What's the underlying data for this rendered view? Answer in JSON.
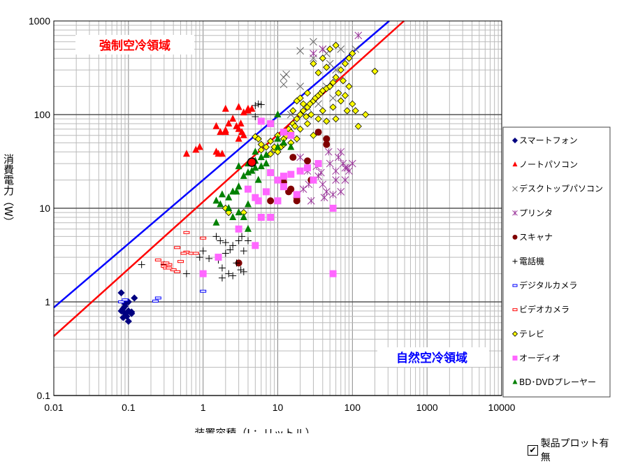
{
  "chart_data": {
    "type": "scatter",
    "xlabel": "装置容積（L：リットル）",
    "ylabel": "消費電力（W）",
    "xscale": "log",
    "yscale": "log",
    "xlim": [
      0.01,
      10000
    ],
    "ylim": [
      0.1,
      1000
    ],
    "xticks": [
      "0.01",
      "0.1",
      "1",
      "10",
      "100",
      "1000",
      "10000"
    ],
    "yticks": [
      "0.1",
      "1",
      "10",
      "100",
      "1000"
    ],
    "grid": true,
    "legend_placement": "right",
    "annotations": [
      {
        "text": "強制空冷領域",
        "color": "#FF0000"
      },
      {
        "text": "自然空冷領域",
        "color": "#0000FF"
      }
    ],
    "lines": [
      {
        "color": "#0000FF",
        "points": [
          [
            0.01,
            0.87
          ],
          [
            311,
            1000
          ]
        ]
      },
      {
        "color": "#FF0000",
        "points": [
          [
            0.01,
            0.43
          ],
          [
            490,
            1000
          ]
        ]
      }
    ],
    "highlight_point": {
      "x": 4.5,
      "y": 31,
      "color": "#FF0000"
    },
    "series": [
      {
        "name": "スマートフォン",
        "marker": "diamond",
        "color": "#000080",
        "points": [
          [
            0.08,
            1.25
          ],
          [
            0.09,
            0.95
          ],
          [
            0.1,
            1.0
          ],
          [
            0.11,
            0.78
          ],
          [
            0.12,
            1.1
          ],
          [
            0.085,
            0.85
          ],
          [
            0.09,
            0.75
          ],
          [
            0.095,
            0.7
          ],
          [
            0.1,
            0.62
          ],
          [
            0.08,
            0.8
          ],
          [
            0.09,
            0.9
          ],
          [
            0.11,
            0.75
          ],
          [
            0.1,
            0.8
          ],
          [
            0.085,
            0.68
          ]
        ]
      },
      {
        "name": "ノートパソコン",
        "marker": "triangle",
        "color": "#FF0000",
        "points": [
          [
            2,
            115
          ],
          [
            3,
            120
          ],
          [
            3.5,
            105
          ],
          [
            4,
            115
          ],
          [
            4.5,
            115
          ],
          [
            1.5,
            75
          ],
          [
            1.7,
            65
          ],
          [
            2.5,
            90
          ],
          [
            3,
            70
          ],
          [
            3.3,
            65
          ],
          [
            2.8,
            75
          ],
          [
            2,
            65
          ],
          [
            2.2,
            80
          ],
          [
            3.5,
            60
          ],
          [
            3,
            55
          ],
          [
            0.8,
            42
          ],
          [
            0.6,
            38
          ],
          [
            0.9,
            45
          ],
          [
            1.6,
            38
          ],
          [
            1.8,
            38
          ],
          [
            1.5,
            40
          ],
          [
            4,
            110
          ],
          [
            3.2,
            80
          ],
          [
            2,
            68
          ]
        ]
      },
      {
        "name": "デスクトップパソコン",
        "marker": "x",
        "color": "#666666",
        "points": [
          [
            30,
            600
          ],
          [
            12,
            250
          ],
          [
            13,
            270
          ],
          [
            12,
            210
          ],
          [
            20,
            480
          ],
          [
            40,
            500
          ],
          [
            30,
            400
          ],
          [
            50,
            350
          ],
          [
            60,
            300
          ],
          [
            45,
            200
          ],
          [
            35,
            130
          ],
          [
            25,
            120
          ],
          [
            55,
            150
          ],
          [
            70,
            500
          ],
          [
            110,
            500
          ],
          [
            20,
            200
          ],
          [
            15,
            100
          ],
          [
            45,
            450
          ]
        ]
      },
      {
        "name": "プリンタ",
        "marker": "asterisk",
        "color": "#993399",
        "points": [
          [
            120,
            700
          ],
          [
            30,
            450
          ],
          [
            40,
            500
          ],
          [
            20,
            35
          ],
          [
            25,
            25
          ],
          [
            30,
            20
          ],
          [
            35,
            22
          ],
          [
            40,
            18
          ],
          [
            50,
            30
          ],
          [
            60,
            25
          ],
          [
            70,
            40
          ],
          [
            80,
            20
          ],
          [
            90,
            25
          ],
          [
            18,
            14
          ],
          [
            22,
            16
          ],
          [
            28,
            12
          ],
          [
            45,
            15
          ],
          [
            55,
            14
          ],
          [
            65,
            35
          ],
          [
            75,
            30
          ],
          [
            85,
            27
          ],
          [
            48,
            40
          ],
          [
            33,
            28
          ],
          [
            38,
            24
          ],
          [
            26,
            18
          ],
          [
            42,
            13
          ],
          [
            60,
            20
          ],
          [
            80,
            27
          ],
          [
            100,
            30
          ],
          [
            70,
            15
          ]
        ]
      },
      {
        "name": "スキャナ",
        "marker": "circle",
        "color": "#800000",
        "points": [
          [
            8,
            12
          ],
          [
            12,
            19
          ],
          [
            14,
            15
          ],
          [
            15,
            16
          ],
          [
            18,
            12
          ],
          [
            25,
            32
          ],
          [
            35,
            65
          ],
          [
            45,
            55
          ],
          [
            45,
            48
          ],
          [
            16,
            35
          ],
          [
            18,
            13
          ],
          [
            28,
            20
          ],
          [
            3,
            2.6
          ]
        ]
      },
      {
        "name": "電話機",
        "marker": "plus",
        "color": "#000000",
        "points": [
          [
            5,
            125
          ],
          [
            5.5,
            130
          ],
          [
            6,
            128
          ],
          [
            5,
            95
          ],
          [
            1,
            3.5
          ],
          [
            0.3,
            2.5
          ],
          [
            0.6,
            2
          ],
          [
            0.9,
            3
          ],
          [
            1.5,
            5
          ],
          [
            1.7,
            4.5
          ],
          [
            2,
            4.3
          ],
          [
            2.5,
            4
          ],
          [
            3,
            4.5
          ],
          [
            3.5,
            3.5
          ],
          [
            2,
            3.3
          ],
          [
            2.3,
            3.6
          ],
          [
            2.8,
            2.6
          ],
          [
            3.2,
            2.2
          ],
          [
            1.8,
            2.3
          ],
          [
            2.2,
            2
          ],
          [
            2.5,
            1.9
          ],
          [
            1.8,
            1.8
          ],
          [
            3.5,
            2.1
          ],
          [
            4,
            4.5
          ],
          [
            3.3,
            5
          ],
          [
            1.2,
            2.9
          ],
          [
            0.15,
            2.5
          ],
          [
            1.6,
            2.8
          ]
        ]
      },
      {
        "name": "デジタルカメラ",
        "marker": "dash",
        "color": "#0000FF",
        "points": [
          [
            0.08,
            1.0
          ],
          [
            0.09,
            1.05
          ],
          [
            0.25,
            1.1
          ],
          [
            0.23,
            1.02
          ],
          [
            1,
            1.3
          ]
        ]
      },
      {
        "name": "ビデオカメラ",
        "marker": "dash",
        "color": "#FF0000",
        "points": [
          [
            0.25,
            2.8
          ],
          [
            0.3,
            2.6
          ],
          [
            0.3,
            2.4
          ],
          [
            0.32,
            2.3
          ],
          [
            0.4,
            2.2
          ],
          [
            0.45,
            2.1
          ],
          [
            0.5,
            2.7
          ],
          [
            0.6,
            3.4
          ],
          [
            0.7,
            3.3
          ],
          [
            0.45,
            3.8
          ],
          [
            0.8,
            3.3
          ],
          [
            0.35,
            2.3
          ],
          [
            0.55,
            3.3
          ],
          [
            1.0,
            4.8
          ],
          [
            0.6,
            5.5
          ],
          [
            0.35,
            2.5
          ],
          [
            0.32,
            2.6
          ]
        ]
      },
      {
        "name": "テレビ",
        "marker": "diamond",
        "color": "#FFFF00",
        "points": [
          [
            5,
            58
          ],
          [
            5.5,
            55
          ],
          [
            6,
            48
          ],
          [
            7,
            45
          ],
          [
            8,
            52
          ],
          [
            9,
            42
          ],
          [
            10,
            40
          ],
          [
            11,
            45
          ],
          [
            12,
            55
          ],
          [
            13,
            60
          ],
          [
            14,
            70
          ],
          [
            15,
            65
          ],
          [
            16,
            80
          ],
          [
            17,
            75
          ],
          [
            18,
            90
          ],
          [
            20,
            100
          ],
          [
            22,
            110
          ],
          [
            24,
            95
          ],
          [
            25,
            120
          ],
          [
            27,
            130
          ],
          [
            30,
            140
          ],
          [
            32,
            150
          ],
          [
            35,
            160
          ],
          [
            38,
            170
          ],
          [
            40,
            180
          ],
          [
            45,
            190
          ],
          [
            50,
            200
          ],
          [
            55,
            220
          ],
          [
            60,
            250
          ],
          [
            70,
            300
          ],
          [
            80,
            350
          ],
          [
            90,
            400
          ],
          [
            100,
            450
          ],
          [
            50,
            500
          ],
          [
            60,
            550
          ],
          [
            30,
            350
          ],
          [
            40,
            400
          ],
          [
            45,
            320
          ],
          [
            35,
            280
          ],
          [
            55,
            120
          ],
          [
            70,
            140
          ],
          [
            80,
            160
          ],
          [
            90,
            200
          ],
          [
            100,
            130
          ],
          [
            110,
            110
          ],
          [
            150,
            100
          ],
          [
            120,
            75
          ],
          [
            200,
            290
          ],
          [
            25,
            80
          ],
          [
            20,
            70
          ],
          [
            30,
            60
          ],
          [
            18,
            55
          ],
          [
            15,
            50
          ],
          [
            12,
            48
          ],
          [
            22,
            130
          ],
          [
            28,
            100
          ],
          [
            35,
            90
          ],
          [
            40,
            110
          ],
          [
            45,
            85
          ],
          [
            60,
            90
          ],
          [
            65,
            170
          ],
          [
            75,
            230
          ],
          [
            85,
            110
          ],
          [
            10,
            60
          ],
          [
            8,
            38
          ],
          [
            6,
            42
          ],
          [
            2,
            10
          ],
          [
            2.2,
            9
          ],
          [
            3.5,
            9
          ],
          [
            9,
            45
          ],
          [
            16,
            110
          ],
          [
            20,
            150
          ],
          [
            25,
            170
          ],
          [
            18,
            140
          ]
        ]
      },
      {
        "name": "オーディオ",
        "marker": "square",
        "color": "#FF66FF",
        "points": [
          [
            6,
            85
          ],
          [
            8,
            80
          ],
          [
            12,
            65
          ],
          [
            15,
            60
          ],
          [
            5,
            13
          ],
          [
            10,
            20
          ],
          [
            12,
            22
          ],
          [
            8,
            8
          ],
          [
            4,
            16
          ],
          [
            15,
            23
          ],
          [
            20,
            25
          ],
          [
            30,
            20
          ],
          [
            55,
            10
          ],
          [
            55,
            2
          ],
          [
            1,
            2
          ],
          [
            1.6,
            3
          ],
          [
            3,
            6
          ],
          [
            5,
            4
          ],
          [
            5.5,
            12
          ],
          [
            7,
            15
          ],
          [
            12,
            17
          ],
          [
            18,
            14
          ],
          [
            25,
            27
          ],
          [
            8,
            24
          ],
          [
            10,
            12
          ],
          [
            6,
            8
          ],
          [
            35,
            30
          ]
        ]
      },
      {
        "name": "BD･DVDプレーヤー",
        "marker": "triangle",
        "color": "#008000",
        "points": [
          [
            10,
            100
          ],
          [
            3,
            28
          ],
          [
            4,
            30
          ],
          [
            5,
            32
          ],
          [
            6,
            35
          ],
          [
            7,
            37
          ],
          [
            4.5,
            25
          ],
          [
            3.5,
            22
          ],
          [
            4,
            24
          ],
          [
            5,
            27
          ],
          [
            6,
            28
          ],
          [
            5.5,
            20
          ],
          [
            3,
            17
          ],
          [
            2.5,
            15
          ],
          [
            2.2,
            13
          ],
          [
            1.5,
            12
          ],
          [
            1.8,
            14
          ],
          [
            1.7,
            11
          ],
          [
            2.2,
            10
          ],
          [
            3,
            9
          ],
          [
            2.5,
            8
          ],
          [
            3.5,
            8
          ],
          [
            1.5,
            7
          ],
          [
            4,
            11
          ],
          [
            2.8,
            15
          ],
          [
            10,
            45
          ],
          [
            12,
            50
          ],
          [
            10,
            55
          ],
          [
            15,
            45
          ],
          [
            5,
            40
          ],
          [
            7,
            30
          ],
          [
            4,
            6
          ]
        ]
      }
    ]
  },
  "plot_toggle": {
    "label": "製品プロット有無",
    "checked": true
  }
}
